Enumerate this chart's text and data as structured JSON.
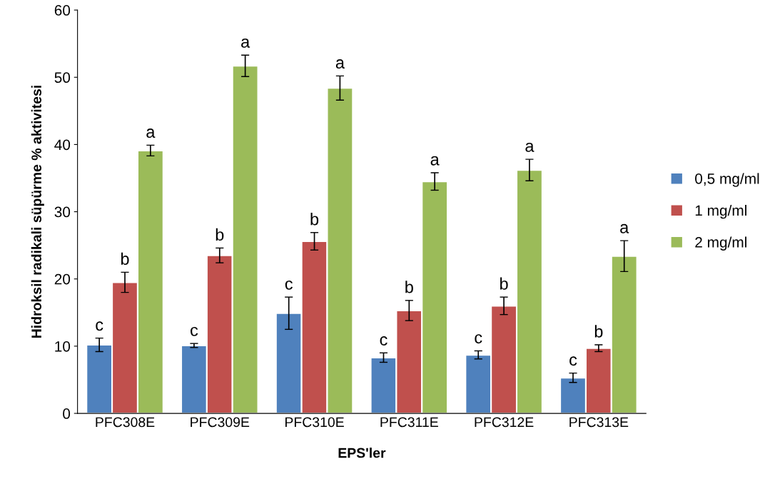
{
  "chart_data": {
    "type": "bar",
    "xlabel": "EPS'ler",
    "ylabel": "Hidroksil radikali süpürme % aktivitesi",
    "categories": [
      "PFC308E",
      "PFC309E",
      "PFC310E",
      "PFC311E",
      "PFC312E",
      "PFC313E"
    ],
    "series": [
      {
        "name": "0,5 mg/ml",
        "color": "#4f81bd",
        "values": [
          10.2,
          10.1,
          14.9,
          8.3,
          8.7,
          5.3
        ],
        "errors": [
          1.0,
          0.3,
          2.4,
          0.7,
          0.6,
          0.7
        ],
        "value_labels": [
          "c",
          "c",
          "c",
          "c",
          "c",
          "c"
        ]
      },
      {
        "name": "1 mg/ml",
        "color": "#c0504d",
        "values": [
          19.5,
          23.5,
          25.6,
          15.3,
          16.0,
          9.7
        ],
        "errors": [
          1.5,
          1.1,
          1.3,
          1.5,
          1.3,
          0.5
        ],
        "value_labels": [
          "b",
          "b",
          "b",
          "b",
          "b",
          "b"
        ]
      },
      {
        "name": "2 mg/ml",
        "color": "#9bbb59",
        "values": [
          39.1,
          51.7,
          48.4,
          34.5,
          36.2,
          23.4
        ],
        "errors": [
          0.8,
          1.6,
          1.8,
          1.3,
          1.6,
          2.3
        ],
        "value_labels": [
          "a",
          "a",
          "a",
          "a",
          "a",
          "a"
        ]
      }
    ],
    "ylim": [
      0,
      60
    ],
    "yticks": [
      0,
      10,
      20,
      30,
      40,
      50,
      60
    ],
    "grid": false,
    "legend": "right"
  }
}
